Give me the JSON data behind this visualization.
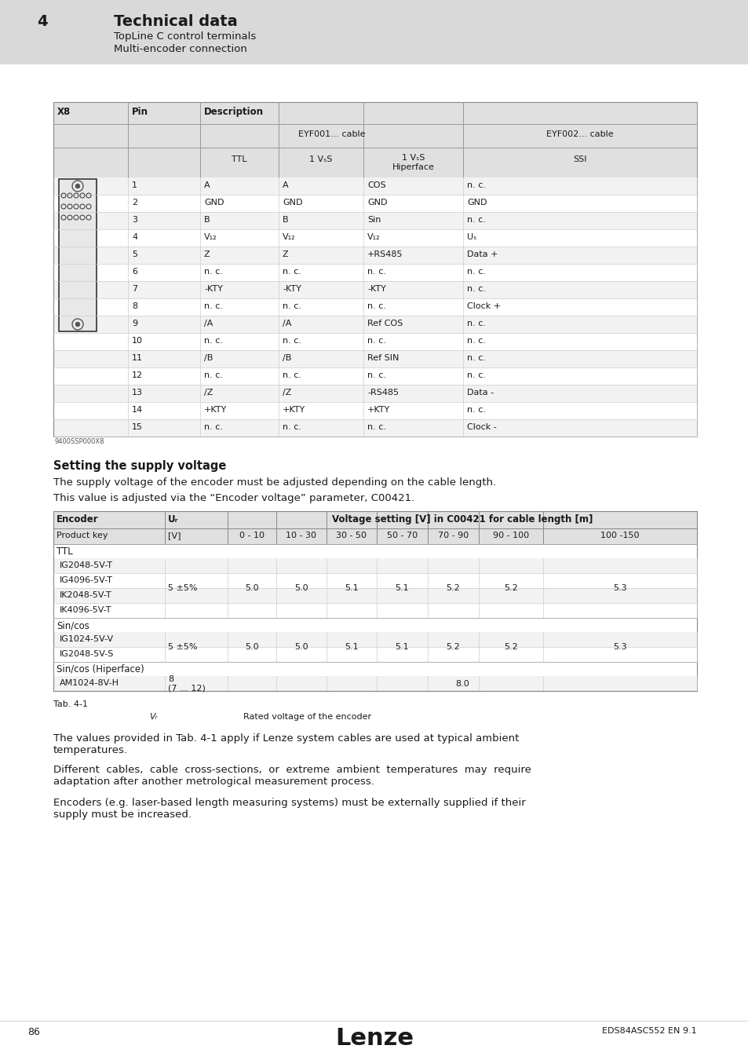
{
  "page_bg": "#ffffff",
  "header_bg": "#d9d9d9",
  "header_number": "4",
  "header_title": "Technical data",
  "header_sub1": "TopLine C control terminals",
  "header_sub2": "Multi-encoder connection",
  "table1_header_bg": "#e0e0e0",
  "table1_row_bg_alt": "#f2f2f2",
  "table1_rows": [
    [
      "1",
      "A",
      "A",
      "COS",
      "n. c."
    ],
    [
      "2",
      "GND",
      "GND",
      "GND",
      "GND"
    ],
    [
      "3",
      "B",
      "B",
      "Sin",
      "n. c."
    ],
    [
      "4",
      "V₁₂",
      "V₁₂",
      "V₁₂",
      "Uₛ"
    ],
    [
      "5",
      "Z",
      "Z",
      "+RS485",
      "Data +"
    ],
    [
      "6",
      "n. c.",
      "n. c.",
      "n. c.",
      "n. c."
    ],
    [
      "7",
      "-KTY",
      "-KTY",
      "-KTY",
      "n. c."
    ],
    [
      "8",
      "n. c.",
      "n. c.",
      "n. c.",
      "Clock +"
    ],
    [
      "9",
      "/A",
      "/A",
      "Ref COS",
      "n. c."
    ],
    [
      "10",
      "n. c.",
      "n. c.",
      "n. c.",
      "n. c."
    ],
    [
      "11",
      "/B",
      "/B",
      "Ref SIN",
      "n. c."
    ],
    [
      "12",
      "n. c.",
      "n. c.",
      "n. c.",
      "n. c."
    ],
    [
      "13",
      "/Z",
      "/Z",
      "-RS485",
      "Data -"
    ],
    [
      "14",
      "+KTY",
      "+KTY",
      "+KTY",
      "n. c."
    ],
    [
      "15",
      "n. c.",
      "n. c.",
      "n. c.",
      "Clock -"
    ]
  ],
  "caption_image": "9400SSP000X8",
  "section_title": "Setting the supply voltage",
  "section_para1": "The supply voltage of the encoder must be adjusted depending on the cable length.",
  "section_para2": "This value is adjusted via the “Encoder voltage” parameter, C00421.",
  "table2_col1": "Encoder",
  "table2_col2": "Uᵣ",
  "table2_col3": "Voltage setting [V] in C00421 for cable length [m]",
  "table2_subrow": [
    "Product key",
    "[V]",
    "0 - 10",
    "10 - 30",
    "30 - 50",
    "50 - 70",
    "70 - 90",
    "90 - 100",
    "100 -150"
  ],
  "table2_sections": [
    {
      "group": "TTL",
      "rows": [
        "IG2048-5V-T",
        "IG4096-5V-T",
        "IK2048-5V-T",
        "IK4096-5V-T"
      ],
      "ur": "5 ±5%",
      "values": [
        "5.0",
        "5.0",
        "5.1",
        "5.1",
        "5.2",
        "5.2",
        "5.3"
      ]
    },
    {
      "group": "Sin/cos",
      "rows": [
        "IG1024-5V-V",
        "IG2048-5V-S"
      ],
      "ur": "5 ±5%",
      "values": [
        "5.0",
        "5.0",
        "5.1",
        "5.1",
        "5.2",
        "5.2",
        "5.3"
      ]
    },
    {
      "group": "Sin/cos (Hiperface)",
      "rows": [
        "AM1024-8V-H"
      ],
      "ur": "8\n(7 ... 12)",
      "values": [
        "",
        "",
        "",
        "8.0",
        "",
        "",
        ""
      ]
    }
  ],
  "tab_label": "Tab. 4-1",
  "tab_note_label": "Vᵣ",
  "tab_note_text": "Rated voltage of the encoder",
  "para3": "The values provided in Tab. 4-1 apply if Lenze system cables are used at typical ambient\ntemperatures.",
  "para4": "Different  cables,  cable  cross-sections,  or  extreme  ambient  temperatures  may  require\nadaptation after another metrological measurement process.",
  "para5": "Encoders (e.g. laser-based length measuring systems) must be externally supplied if their\nsupply must be increased.",
  "footer_page": "86",
  "footer_logo": "Lenze",
  "footer_ref": "EDS84ASC552 EN 9.1"
}
